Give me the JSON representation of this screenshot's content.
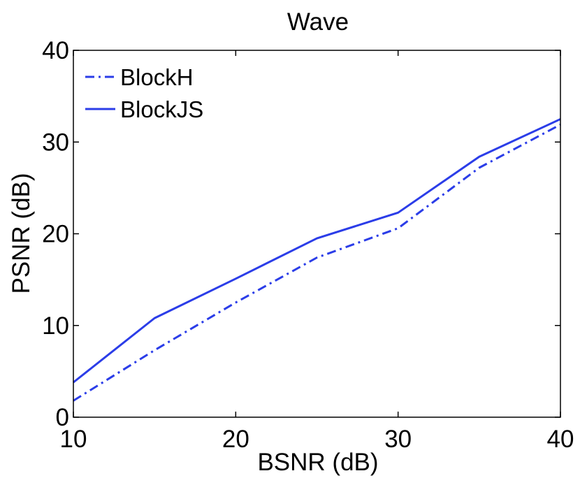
{
  "chart_data": {
    "type": "line",
    "title": "Wave",
    "xlabel": "BSNR (dB)",
    "ylabel": "PSNR (dB)",
    "xlim": [
      10,
      40
    ],
    "ylim": [
      0,
      40
    ],
    "xticks": [
      10,
      20,
      30,
      40
    ],
    "yticks": [
      0,
      10,
      20,
      30,
      40
    ],
    "x": [
      10,
      15,
      20,
      25,
      30,
      35,
      40
    ],
    "series": [
      {
        "name": "BlockH",
        "style": "dashdot",
        "color": "#2b3de8",
        "values": [
          1.8,
          7.3,
          12.5,
          17.4,
          20.6,
          27.2,
          31.9
        ]
      },
      {
        "name": "BlockJS",
        "style": "solid",
        "color": "#2b3de8",
        "values": [
          3.8,
          10.8,
          15.1,
          19.5,
          22.3,
          28.4,
          32.5
        ]
      }
    ],
    "legend_position": "top-left",
    "grid": false
  }
}
